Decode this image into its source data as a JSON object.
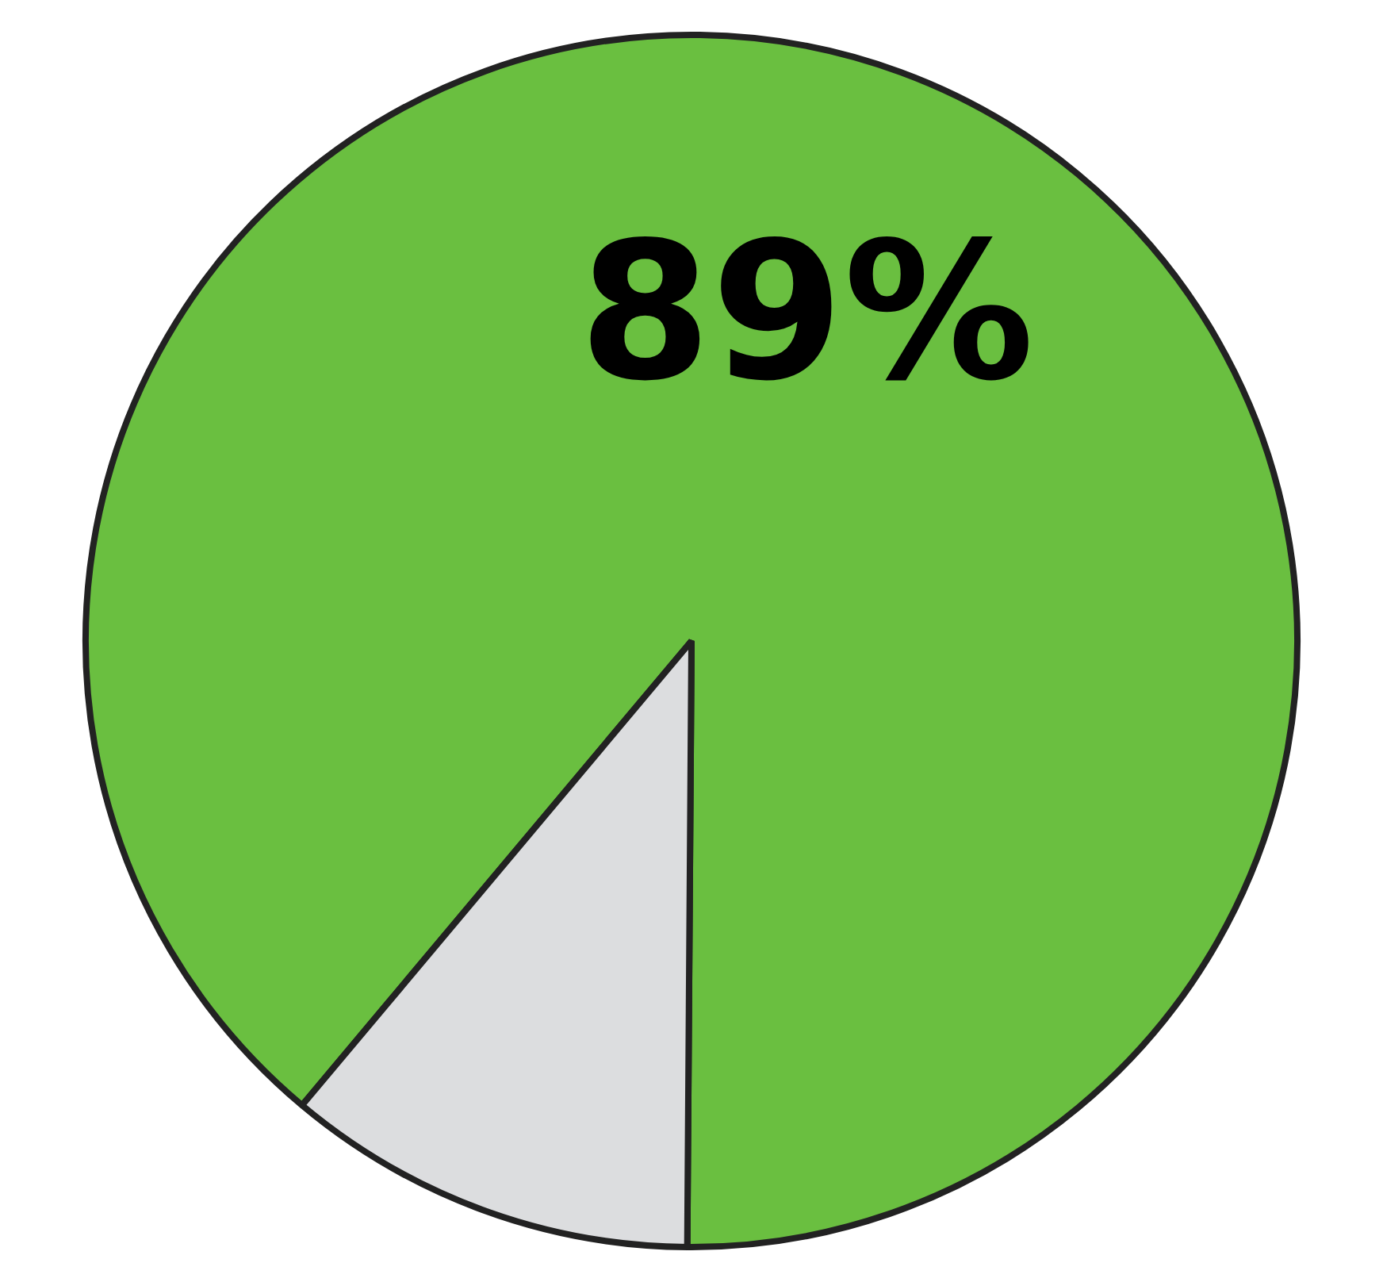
{
  "chart_data": {
    "type": "pie",
    "categories": [
      null,
      null
    ],
    "values": [
      89,
      11
    ],
    "colors": [
      "#6abf40",
      "#dcdddf"
    ],
    "value_labels": [
      "89%",
      null
    ]
  }
}
